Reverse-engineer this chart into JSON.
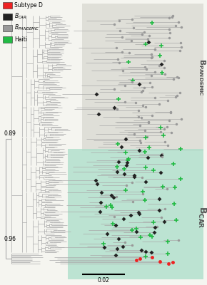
{
  "legend_items": [
    {
      "label": "Subtype D",
      "color": "#EE2222"
    },
    {
      "label": "B_CAR",
      "color": "#222222"
    },
    {
      "label": "B_PANDEMIC",
      "color": "#999999"
    },
    {
      "label": "Haiti",
      "color": "#22BB44"
    }
  ],
  "bg_color": "#f5f5f0",
  "bg_pandemic_color": "#d4d4cc",
  "bg_car_color": "#aaddc8",
  "tree_color": "#aaaaaa",
  "node_089": "0.89",
  "node_096": "0.96",
  "scale_label": "0.02",
  "figsize": [
    2.9,
    4.0
  ],
  "dpi": 100
}
